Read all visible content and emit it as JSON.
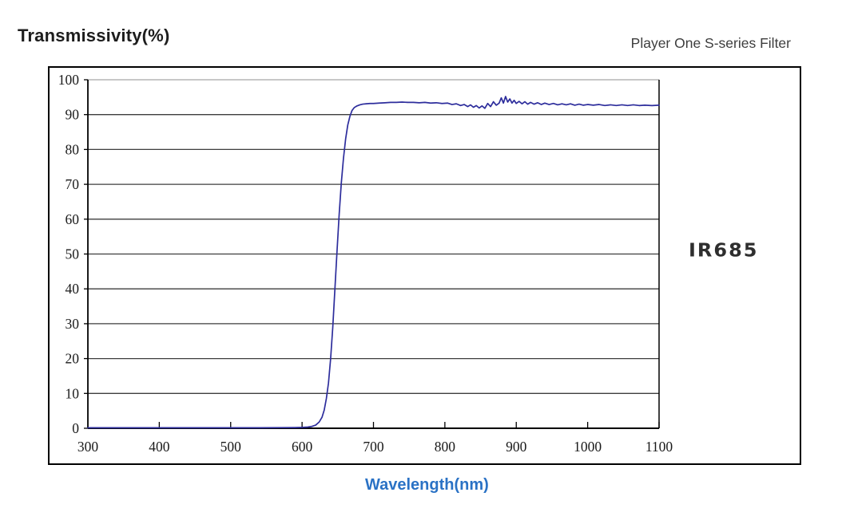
{
  "header": {
    "left_title": "Transmissivity(%)",
    "right_title": "Player One S-series Filter"
  },
  "filter_label": "IR685",
  "x_axis_title": "Wavelength(nm)",
  "colors": {
    "curve": "#2d2d9c",
    "grid": "#3d3d3d",
    "top_grid": "#a6a6a6",
    "axis": "#000000",
    "tick_text": "#1a1a1a",
    "x_title_blue": "#2a72c5"
  },
  "chart_data": {
    "type": "line",
    "title": "Transmissivity(%)",
    "xlabel": "Wavelength(nm)",
    "ylabel": "Transmissivity(%)",
    "xlim": [
      300,
      1100
    ],
    "ylim": [
      0,
      100
    ],
    "x_ticks": [
      300,
      400,
      500,
      600,
      700,
      800,
      900,
      1000,
      1100
    ],
    "y_ticks": [
      0,
      10,
      20,
      30,
      40,
      50,
      60,
      70,
      80,
      90,
      100
    ],
    "grid": "horizontal",
    "legend": "none",
    "series": [
      {
        "name": "IR685 transmission",
        "points": [
          [
            300,
            0.15
          ],
          [
            340,
            0.15
          ],
          [
            380,
            0.15
          ],
          [
            420,
            0.15
          ],
          [
            460,
            0.15
          ],
          [
            500,
            0.15
          ],
          [
            540,
            0.15
          ],
          [
            570,
            0.18
          ],
          [
            590,
            0.2
          ],
          [
            600,
            0.25
          ],
          [
            608,
            0.35
          ],
          [
            614,
            0.55
          ],
          [
            619,
            0.9
          ],
          [
            624,
            1.8
          ],
          [
            628,
            3.2
          ],
          [
            631,
            5.2
          ],
          [
            634,
            8.5
          ],
          [
            637,
            13
          ],
          [
            640,
            20
          ],
          [
            643,
            29
          ],
          [
            646,
            40
          ],
          [
            649,
            51
          ],
          [
            652,
            61.5
          ],
          [
            655,
            70.5
          ],
          [
            658,
            77.5
          ],
          [
            661,
            83
          ],
          [
            664,
            87
          ],
          [
            667,
            89.5
          ],
          [
            670,
            91.2
          ],
          [
            673,
            92
          ],
          [
            677,
            92.5
          ],
          [
            681,
            92.8
          ],
          [
            685,
            93
          ],
          [
            690,
            93.1
          ],
          [
            695,
            93.2
          ],
          [
            700,
            93.2
          ],
          [
            708,
            93.3
          ],
          [
            716,
            93.4
          ],
          [
            724,
            93.5
          ],
          [
            732,
            93.5
          ],
          [
            740,
            93.6
          ],
          [
            748,
            93.5
          ],
          [
            756,
            93.5
          ],
          [
            764,
            93.4
          ],
          [
            772,
            93.5
          ],
          [
            780,
            93.3
          ],
          [
            788,
            93.4
          ],
          [
            796,
            93.2
          ],
          [
            804,
            93.3
          ],
          [
            810,
            92.9
          ],
          [
            816,
            93.1
          ],
          [
            822,
            92.6
          ],
          [
            827,
            92.9
          ],
          [
            832,
            92.3
          ],
          [
            836,
            92.8
          ],
          [
            840,
            92.1
          ],
          [
            844,
            92.6
          ],
          [
            848,
            91.9
          ],
          [
            852,
            92.5
          ],
          [
            856,
            91.8
          ],
          [
            860,
            93.2
          ],
          [
            864,
            92.3
          ],
          [
            868,
            93.7
          ],
          [
            872,
            92.7
          ],
          [
            876,
            93.3
          ],
          [
            879,
            94.8
          ],
          [
            882,
            93.3
          ],
          [
            885,
            95.2
          ],
          [
            888,
            93.6
          ],
          [
            891,
            94.5
          ],
          [
            894,
            93.3
          ],
          [
            897,
            94.1
          ],
          [
            900,
            93.2
          ],
          [
            904,
            93.8
          ],
          [
            908,
            93.1
          ],
          [
            912,
            93.7
          ],
          [
            916,
            93.0
          ],
          [
            920,
            93.5
          ],
          [
            925,
            93.0
          ],
          [
            930,
            93.4
          ],
          [
            935,
            92.9
          ],
          [
            940,
            93.3
          ],
          [
            946,
            92.9
          ],
          [
            952,
            93.2
          ],
          [
            958,
            92.8
          ],
          [
            964,
            93.1
          ],
          [
            970,
            92.8
          ],
          [
            976,
            93.1
          ],
          [
            982,
            92.7
          ],
          [
            988,
            93.0
          ],
          [
            994,
            92.7
          ],
          [
            1000,
            92.9
          ],
          [
            1008,
            92.7
          ],
          [
            1016,
            92.9
          ],
          [
            1024,
            92.6
          ],
          [
            1032,
            92.8
          ],
          [
            1040,
            92.6
          ],
          [
            1048,
            92.8
          ],
          [
            1056,
            92.6
          ],
          [
            1064,
            92.8
          ],
          [
            1072,
            92.6
          ],
          [
            1080,
            92.7
          ],
          [
            1090,
            92.6
          ],
          [
            1100,
            92.7
          ]
        ]
      }
    ]
  }
}
